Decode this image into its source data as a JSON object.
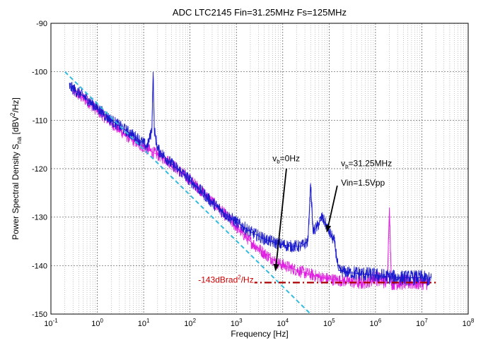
{
  "chart_data": {
    "type": "line",
    "title": "ADC LTC2145 Fin=31.25MHz Fs=125MHz",
    "xlabel": "Frequency [Hz]",
    "ylabel": "Power Spectral Density S",
    "ylabel_sub": "na",
    "ylabel_unit_pre": " [dBV",
    "ylabel_unit_sup": "2",
    "ylabel_unit_post": "/Hz]",
    "xscale": "log",
    "xlim": [
      0.1,
      100000000
    ],
    "ylim": [
      -150,
      -90
    ],
    "xticks": [
      {
        "value": 0.1,
        "base": "10",
        "exp": "-1"
      },
      {
        "value": 1,
        "base": "10",
        "exp": "0"
      },
      {
        "value": 10,
        "base": "10",
        "exp": "1"
      },
      {
        "value": 100,
        "base": "10",
        "exp": "2"
      },
      {
        "value": 1000,
        "base": "10",
        "exp": "3"
      },
      {
        "value": 10000,
        "base": "10",
        "exp": "4"
      },
      {
        "value": 100000,
        "base": "10",
        "exp": "5"
      },
      {
        "value": 1000000,
        "base": "10",
        "exp": "6"
      },
      {
        "value": 10000000,
        "base": "10",
        "exp": "7"
      },
      {
        "value": 100000000,
        "base": "10",
        "exp": "8"
      }
    ],
    "yticks": [
      "-90",
      "-100",
      "-110",
      "-120",
      "-130",
      "-140",
      "-150"
    ],
    "grid": true,
    "series": [
      {
        "color": "#1a1acc",
        "points": [
          [
            0.25,
            -103
          ],
          [
            0.5,
            -105
          ],
          [
            1,
            -107.5
          ],
          [
            2,
            -110
          ],
          [
            4,
            -112
          ],
          [
            8,
            -114
          ],
          [
            12,
            -115.5
          ],
          [
            15,
            -112
          ],
          [
            16,
            -100
          ],
          [
            17,
            -112
          ],
          [
            20,
            -116
          ],
          [
            40,
            -119
          ],
          [
            80,
            -121.5
          ],
          [
            150,
            -124
          ],
          [
            300,
            -127
          ],
          [
            600,
            -129.5
          ],
          [
            1000,
            -131
          ],
          [
            2000,
            -133
          ],
          [
            4000,
            -134.5
          ],
          [
            8000,
            -135.5
          ],
          [
            15000,
            -136
          ],
          [
            25000,
            -136
          ],
          [
            35000,
            -135
          ],
          [
            40000,
            -123
          ],
          [
            45000,
            -133
          ],
          [
            55000,
            -132
          ],
          [
            70000,
            -130
          ],
          [
            80000,
            -131
          ],
          [
            100000,
            -133
          ],
          [
            130000,
            -135
          ],
          [
            160000,
            -141
          ],
          [
            300000,
            -141.5
          ],
          [
            1000000,
            -142
          ],
          [
            3000000,
            -142.5
          ],
          [
            10000000,
            -142.5
          ],
          [
            16000000,
            -143
          ]
        ]
      },
      {
        "color": "#e020e0",
        "points": [
          [
            0.3,
            -104
          ],
          [
            0.6,
            -106
          ],
          [
            1,
            -108
          ],
          [
            2,
            -110.5
          ],
          [
            4,
            -113
          ],
          [
            8,
            -115
          ],
          [
            15,
            -116.5
          ],
          [
            30,
            -118
          ],
          [
            60,
            -120.5
          ],
          [
            120,
            -123
          ],
          [
            250,
            -126
          ],
          [
            500,
            -129
          ],
          [
            1000,
            -132
          ],
          [
            2000,
            -135
          ],
          [
            4000,
            -137.5
          ],
          [
            8000,
            -139.5
          ],
          [
            15000,
            -140.5
          ],
          [
            30000,
            -141.5
          ],
          [
            70000,
            -142.5
          ],
          [
            150000,
            -143
          ],
          [
            500000,
            -143.5
          ],
          [
            1000000,
            -142.5
          ],
          [
            1800000,
            -143.5
          ],
          [
            2000000,
            -128
          ],
          [
            2200000,
            -143.5
          ],
          [
            5000000,
            -143.5
          ],
          [
            15000000,
            -143.5
          ]
        ]
      }
    ],
    "lines": [
      {
        "style": "dashed",
        "color": "#33bbdd",
        "points": [
          [
            0.2,
            -100
          ],
          [
            40000,
            -150
          ]
        ]
      },
      {
        "style": "dashdot",
        "color": "#aa0000",
        "points": [
          [
            2000,
            -143.5
          ],
          [
            20000000,
            -143.5
          ]
        ]
      }
    ],
    "annotations": [
      {
        "id": "a1",
        "parts": [
          "v",
          "b",
          "=0Hz"
        ],
        "text_at": [
          6000,
          -118.5
        ]
      },
      {
        "id": "a2",
        "parts": [
          "v",
          "b",
          "=31.25MHz"
        ],
        "text_at": [
          180000,
          -119.5
        ]
      },
      {
        "id": "a3",
        "text": "Vin=1.5Vpp",
        "text_at": [
          180000,
          -123.5
        ]
      },
      {
        "id": "a4",
        "parts": [
          "-143dBrad",
          "2",
          "/Hz"
        ],
        "text_at": [
          150,
          -143.5
        ]
      }
    ],
    "arrows": [
      {
        "from": [
          12000,
          -120
        ],
        "to": [
          7000,
          -141
        ]
      },
      {
        "from": [
          150000,
          -123.5
        ],
        "to": [
          90000,
          -133
        ]
      }
    ]
  }
}
